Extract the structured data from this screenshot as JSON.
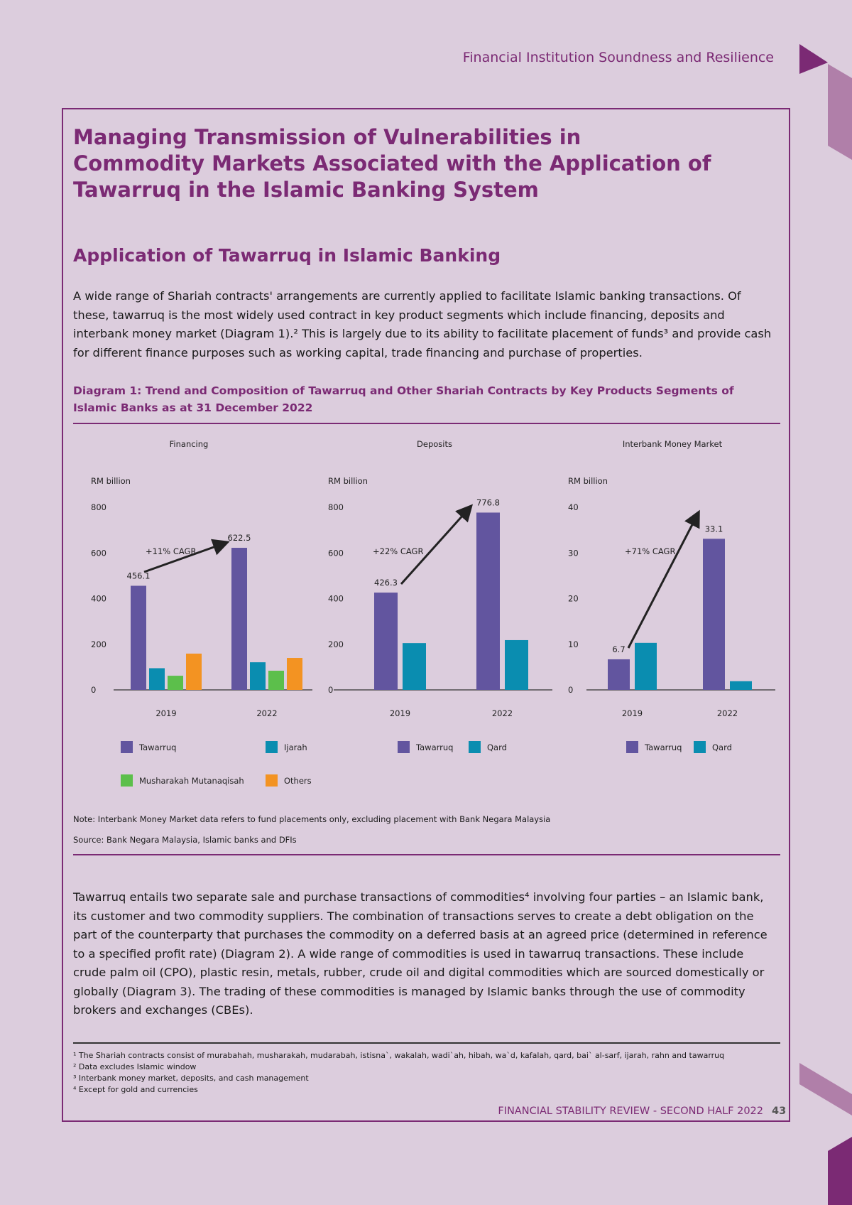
{
  "header": {
    "section": "Financial Institution Soundness and Resilience"
  },
  "title": "Managing Transmission of Vulnerabilities in Commodity Markets Associated with the Application of Tawarruq in the Islamic Banking System",
  "subtitle": "Application of Tawarruq in Islamic Banking",
  "paragraph1": "A wide range of Shariah contracts' arrangements are currently applied to facilitate Islamic banking transactions. Of these, tawarruq is the most widely used contract in key product segments which include financing, deposits and interbank money market (Diagram 1).² This is largely due to its ability to facilitate placement of funds³ and provide cash for different finance purposes such as working capital, trade financing and purchase of properties.",
  "diagram_caption": "Diagram 1: Trend and Composition of Tawarruq and Other Shariah Contracts by Key Products Segments of Islamic Banks as at 31 December 2022",
  "colors": {
    "Tawarruq": "#62559f",
    "Ijarah": "#0a8db0",
    "Qard": "#0a8db0",
    "Musharakah Mutanaqisah": "#5cbf4b",
    "Others": "#f39322",
    "accent": "#7b2a74"
  },
  "chart_data": [
    {
      "type": "bar",
      "title": "Financing",
      "ylabel": "RM billion",
      "categories": [
        "2019",
        "2022"
      ],
      "ylim": [
        0,
        800
      ],
      "yticks": [
        "0",
        "200",
        "400",
        "600",
        "800"
      ],
      "series": [
        {
          "name": "Tawarruq",
          "values": [
            456.1,
            622.5
          ]
        },
        {
          "name": "Ijarah",
          "values": [
            95,
            121
          ]
        },
        {
          "name": "Musharakah Mutanaqisah",
          "values": [
            62,
            84
          ]
        },
        {
          "name": "Others",
          "values": [
            159,
            140
          ]
        }
      ],
      "data_labels": [
        "456.1",
        "622.5"
      ],
      "annotation": "+11% CAGR"
    },
    {
      "type": "bar",
      "title": "Deposits",
      "ylabel": "RM billion",
      "categories": [
        "2019",
        "2022"
      ],
      "ylim": [
        0,
        800
      ],
      "yticks": [
        "0",
        "200",
        "400",
        "600",
        "800"
      ],
      "series": [
        {
          "name": "Tawarruq",
          "values": [
            426.3,
            776.8
          ]
        },
        {
          "name": "Qard",
          "values": [
            205,
            218
          ]
        }
      ],
      "data_labels": [
        "426.3",
        "776.8"
      ],
      "annotation": "+22% CAGR"
    },
    {
      "type": "bar",
      "title": "Interbank Money Market",
      "ylabel": "RM billion",
      "categories": [
        "2019",
        "2022"
      ],
      "ylim": [
        0,
        40
      ],
      "yticks": [
        "0",
        "10",
        "20",
        "30",
        "40"
      ],
      "series": [
        {
          "name": "Tawarruq",
          "values": [
            6.7,
            33.1
          ]
        },
        {
          "name": "Qard",
          "values": [
            10.3,
            1.9
          ]
        }
      ],
      "data_labels": [
        "6.7",
        "33.1"
      ],
      "annotation": "+71% CAGR"
    }
  ],
  "note": "Note: Interbank Money Market data refers to fund placements only, excluding placement with Bank Negara Malaysia",
  "source": "Source: Bank Negara Malaysia, Islamic banks and DFIs",
  "paragraph2": "Tawarruq entails two separate sale and purchase transactions of commodities⁴ involving four parties – an Islamic bank, its customer and two commodity suppliers. The combination of transactions serves to create a debt obligation on the part of the counterparty that purchases the commodity on a deferred basis at an agreed price (determined in reference to a specified profit rate) (Diagram 2). A wide range of commodities is used in tawarruq transactions. These include crude palm oil (CPO), plastic resin, metals, rubber, crude oil and digital commodities which are sourced domestically or globally (Diagram 3). The trading of these commodities is managed by Islamic banks through the use of commodity brokers and exchanges (CBEs).",
  "footnotes": [
    "¹  The Shariah contracts consist of murabahah, musharakah, mudarabah, istisna`, wakalah, wadi`ah, hibah, wa`d, kafalah, qard, bai` al-sarf, ijarah, rahn and tawarruq",
    "²  Data excludes Islamic window",
    "³  Interbank money market, deposits, and cash management",
    "⁴  Except for gold and currencies"
  ],
  "footer": {
    "publication": "FINANCIAL STABILITY REVIEW - SECOND HALF 2022",
    "page": "43"
  }
}
